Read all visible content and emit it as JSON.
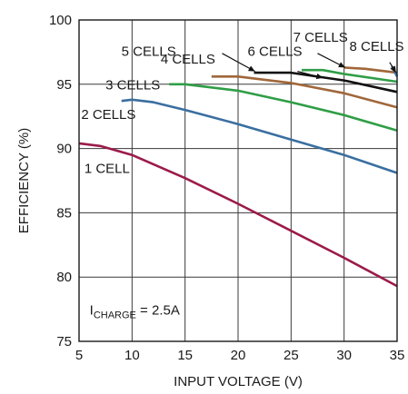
{
  "chart_data": {
    "type": "line",
    "title": "",
    "xlabel": "INPUT VOLTAGE (V)",
    "ylabel": "EFFICIENCY (%)",
    "xlim": [
      5,
      35
    ],
    "ylim": [
      75,
      100
    ],
    "xticks": [
      5,
      10,
      15,
      20,
      25,
      30,
      35
    ],
    "yticks": [
      75,
      80,
      85,
      90,
      95,
      100
    ],
    "grid": true,
    "legend": "none",
    "annotation": {
      "prefix": "I",
      "sub": "CHARGE",
      "suffix": " = 2.5A"
    },
    "series": [
      {
        "name": "1 CELL",
        "color": "#9b1b4a",
        "x": [
          5,
          7,
          10,
          15,
          20,
          25,
          30,
          35
        ],
        "y": [
          90.4,
          90.2,
          89.5,
          87.7,
          85.7,
          83.6,
          81.5,
          79.3
        ]
      },
      {
        "name": "2 CELLS",
        "color": "#3a6fa0",
        "x": [
          9,
          10,
          12,
          15,
          20,
          25,
          30,
          35
        ],
        "y": [
          93.7,
          93.8,
          93.6,
          93.0,
          91.9,
          90.7,
          89.5,
          88.1
        ]
      },
      {
        "name": "3 CELLS",
        "color": "#2f9e46",
        "x": [
          13.5,
          15,
          20,
          25,
          30,
          35
        ],
        "y": [
          95.0,
          95.0,
          94.5,
          93.6,
          92.6,
          91.4
        ]
      },
      {
        "name": "4 CELLS",
        "color": "#a0673a",
        "x": [
          17.5,
          20,
          25,
          30,
          35
        ],
        "y": [
          95.6,
          95.6,
          95.1,
          94.3,
          93.2
        ]
      },
      {
        "name": "5 CELLS",
        "color": "#111111",
        "x": [
          21.5,
          25,
          30,
          35
        ],
        "y": [
          95.9,
          95.9,
          95.3,
          94.4
        ]
      },
      {
        "name": "6 CELLS",
        "color": "#2f9e46",
        "x": [
          26,
          28,
          30,
          35
        ],
        "y": [
          96.1,
          96.1,
          95.8,
          95.2
        ]
      },
      {
        "name": "7 CELLS",
        "color": "#a0673a",
        "x": [
          30,
          32,
          35
        ],
        "y": [
          96.3,
          96.2,
          95.9
        ]
      },
      {
        "name": "8 CELLS",
        "color": "#3a6fa0",
        "x": [
          34.5,
          35
        ],
        "y": [
          96.4,
          95.6
        ]
      }
    ]
  }
}
